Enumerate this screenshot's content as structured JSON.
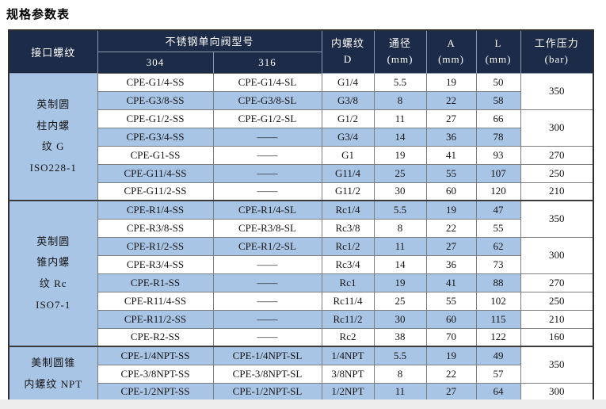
{
  "page": {
    "title": "规格参数表"
  },
  "colors": {
    "header_bg": "#1c2b47",
    "header_text": "#ffffff",
    "row_blue": "#a9c5e6",
    "row_white": "#ffffff",
    "border_outer": "#2f2f2f",
    "border_inner": "#7d7d7d"
  },
  "table": {
    "header": {
      "interface_thread": "接口螺纹",
      "model_group": "不锈钢单向阀型号",
      "model_304": "304",
      "model_316": "316",
      "inner_thread": "内螺纹\nD",
      "bore": "通径\n(mm)",
      "dim_a": "A\n(mm)",
      "dim_l": "L\n(mm)",
      "pressure": "工作压力\n(bar)"
    },
    "sections": [
      {
        "label": "英制圆\n柱内螺\n纹 G\nISO228-1",
        "rows": [
          {
            "m304": "CPE-G1/4-SS",
            "m316": "CPE-G1/4-SL",
            "d": "G1/4",
            "bore": "5.5",
            "a": "19",
            "l": "50"
          },
          {
            "m304": "CPE-G3/8-SS",
            "m316": "CPE-G3/8-SL",
            "d": "G3/8",
            "bore": "8",
            "a": "22",
            "l": "58"
          },
          {
            "m304": "CPE-G1/2-SS",
            "m316": "CPE-G1/2-SL",
            "d": "G1/2",
            "bore": "11",
            "a": "27",
            "l": "66"
          },
          {
            "m304": "CPE-G3/4-SS",
            "m316": "——",
            "d": "G3/4",
            "bore": "14",
            "a": "36",
            "l": "78"
          },
          {
            "m304": "CPE-G1-SS",
            "m316": "——",
            "d": "G1",
            "bore": "19",
            "a": "41",
            "l": "93"
          },
          {
            "m304": "CPE-G11/4-SS",
            "m316": "——",
            "d": "G11/4",
            "bore": "25",
            "a": "55",
            "l": "107"
          },
          {
            "m304": "CPE-G11/2-SS",
            "m316": "——",
            "d": "G11/2",
            "bore": "30",
            "a": "60",
            "l": "120"
          }
        ],
        "pressures": [
          {
            "value": "350",
            "span": 2
          },
          {
            "value": "300",
            "span": 2
          },
          {
            "value": "270",
            "span": 1
          },
          {
            "value": "250",
            "span": 1
          },
          {
            "value": "210",
            "span": 1
          }
        ]
      },
      {
        "label": "英制圆\n锥内螺\n纹 Rc\nISO7-1",
        "rows": [
          {
            "m304": "CPE-R1/4-SS",
            "m316": "CPE-R1/4-SL",
            "d": "Rc1/4",
            "bore": "5.5",
            "a": "19",
            "l": "47"
          },
          {
            "m304": "CPE-R3/8-SS",
            "m316": "CPE-R3/8-SL",
            "d": "Rc3/8",
            "bore": "8",
            "a": "22",
            "l": "55"
          },
          {
            "m304": "CPE-R1/2-SS",
            "m316": "CPE-R1/2-SL",
            "d": "Rc1/2",
            "bore": "11",
            "a": "27",
            "l": "62"
          },
          {
            "m304": "CPE-R3/4-SS",
            "m316": "——",
            "d": "Rc3/4",
            "bore": "14",
            "a": "36",
            "l": "73"
          },
          {
            "m304": "CPE-R1-SS",
            "m316": "——",
            "d": "Rc1",
            "bore": "19",
            "a": "41",
            "l": "88"
          },
          {
            "m304": "CPE-R11/4-SS",
            "m316": "——",
            "d": "Rc11/4",
            "bore": "25",
            "a": "55",
            "l": "102"
          },
          {
            "m304": "CPE-R11/2-SS",
            "m316": "——",
            "d": "Rc11/2",
            "bore": "30",
            "a": "60",
            "l": "115"
          },
          {
            "m304": "CPE-R2-SS",
            "m316": "——",
            "d": "Rc2",
            "bore": "38",
            "a": "70",
            "l": "122"
          }
        ],
        "pressures": [
          {
            "value": "350",
            "span": 2
          },
          {
            "value": "300",
            "span": 2
          },
          {
            "value": "270",
            "span": 1
          },
          {
            "value": "250",
            "span": 1
          },
          {
            "value": "210",
            "span": 1
          },
          {
            "value": "160",
            "span": 1
          }
        ]
      },
      {
        "label": "美制圆锥\n内螺纹 NPT",
        "rows": [
          {
            "m304": "CPE-1/4NPT-SS",
            "m316": "CPE-1/4NPT-SL",
            "d": "1/4NPT",
            "bore": "5.5",
            "a": "19",
            "l": "49"
          },
          {
            "m304": "CPE-3/8NPT-SS",
            "m316": "CPE-3/8NPT-SL",
            "d": "3/8NPT",
            "bore": "8",
            "a": "22",
            "l": "57"
          },
          {
            "m304": "CPE-1/2NPT-SS",
            "m316": "CPE-1/2NPT-SL",
            "d": "1/2NPT",
            "bore": "11",
            "a": "27",
            "l": "64"
          }
        ],
        "pressures": [
          {
            "value": "350",
            "span": 2
          },
          {
            "value": "300",
            "span": 1
          }
        ]
      }
    ]
  }
}
